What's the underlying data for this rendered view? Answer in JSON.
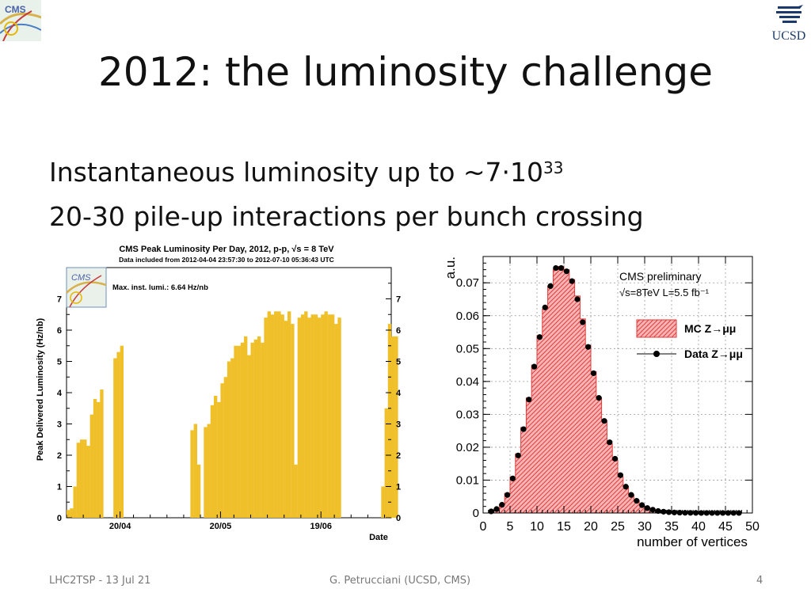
{
  "slide": {
    "title": "2012: the luminosity challenge",
    "bullet1_text": "Instantaneous luminosity up to ~7·10",
    "bullet1_exp": "33",
    "bullet2": "20-30 pile-up interactions per bunch crossing",
    "footer_left": "LHC2TSP - 13 Jul 21",
    "footer_center": "G. Petrucciani (UCSD, CMS)",
    "footer_right": "4",
    "logo_left_text": "CMS",
    "logo_right_text": "UCSD"
  },
  "chart_data": [
    {
      "type": "bar",
      "title": "CMS Peak Luminosity Per Day, 2012, p-p,  √s = 8 TeV",
      "subtitle": "Data included from 2012-04-04 23:57:30 to 2012-07-10 05:36:43 UTC",
      "annotation": "Max. inst. lumi.: 6.64 Hz/nb",
      "xlabel": "Date",
      "ylabel": "Peak Delivered Luminosity (Hz/nb)",
      "ylim": [
        0,
        8
      ],
      "yticks": [
        0,
        1,
        2,
        3,
        4,
        5,
        6,
        7
      ],
      "xtick_labels": [
        {
          "day": 16,
          "label": "20/04"
        },
        {
          "day": 46,
          "label": "20/05"
        },
        {
          "day": 76,
          "label": "19/06"
        }
      ],
      "ndays": 97,
      "color": "#f0c02a",
      "values": [
        0.25,
        0.3,
        1.0,
        2.4,
        2.5,
        2.5,
        2.3,
        3.3,
        3.8,
        3.7,
        4.1,
        0,
        0,
        0,
        5.1,
        5.3,
        5.5,
        0,
        0,
        0,
        0,
        0,
        0,
        0,
        0,
        0,
        0,
        0,
        0,
        0,
        0,
        0,
        0,
        0,
        0,
        0,
        0,
        2.8,
        3.0,
        1.7,
        0,
        2.9,
        3.0,
        3.6,
        3.9,
        3.7,
        4.3,
        4.5,
        5.0,
        5.1,
        5.5,
        5.5,
        5.6,
        5.8,
        5.2,
        5.6,
        5.7,
        5.8,
        5.6,
        6.4,
        6.6,
        6.5,
        6.6,
        6.6,
        6.5,
        6.3,
        6.6,
        6.2,
        1.7,
        6.4,
        6.5,
        6.6,
        6.4,
        6.5,
        6.5,
        6.4,
        6.5,
        6.6,
        6.5,
        6.5,
        6.2,
        6.4,
        0,
        0,
        0,
        0,
        0,
        0,
        0,
        0,
        0,
        0,
        0,
        0,
        1.0,
        3.5,
        6.2,
        5.8,
        5.8
      ]
    },
    {
      "type": "histogram",
      "title": "CMS preliminary",
      "subtitle": "√s=8TeV  L=5.5 fb⁻¹",
      "xlabel": "number of vertices",
      "ylabel": "a.u.",
      "xlim": [
        0,
        50
      ],
      "ylim": [
        0,
        0.078
      ],
      "xticks": [
        0,
        5,
        10,
        15,
        20,
        25,
        30,
        35,
        40,
        45,
        50
      ],
      "yticks": [
        0,
        0.01,
        0.02,
        0.03,
        0.04,
        0.05,
        0.06,
        0.07
      ],
      "ytick_labels": [
        "0",
        "0.01",
        "0.02",
        "0.03",
        "0.04",
        "0.05",
        "0.06",
        "0.07"
      ],
      "bin_width": 1,
      "mc": {
        "name": "MC Z→μμ",
        "color": "#e63b3b",
        "values": [
          0.0005,
          0.0012,
          0.0025,
          0.006,
          0.011,
          0.018,
          0.026,
          0.035,
          0.045,
          0.054,
          0.062,
          0.069,
          0.074,
          0.075,
          0.074,
          0.071,
          0.066,
          0.059,
          0.051,
          0.043,
          0.035,
          0.028,
          0.021,
          0.016,
          0.011,
          0.008,
          0.0055,
          0.0037,
          0.0024,
          0.0015,
          0.001,
          0.0006,
          0.0004,
          0.00025,
          0.00015,
          0.0001,
          6e-05,
          4e-05,
          3e-05,
          2e-05,
          1e-05,
          1e-05,
          1e-05,
          1e-05,
          1e-05,
          1e-05,
          1e-05
        ]
      },
      "data": {
        "name": "Data Z→μμ",
        "color": "#000000",
        "values": [
          0.0005,
          0.0012,
          0.0025,
          0.0055,
          0.0105,
          0.0175,
          0.0255,
          0.0345,
          0.0445,
          0.0535,
          0.0625,
          0.069,
          0.0745,
          0.0745,
          0.0735,
          0.0705,
          0.065,
          0.058,
          0.0505,
          0.0425,
          0.035,
          0.028,
          0.0215,
          0.0165,
          0.0115,
          0.008,
          0.0055,
          0.0037,
          0.0024,
          0.0015,
          0.001,
          0.0006,
          0.0004,
          0.00025,
          0.00015,
          0.0001,
          6e-05,
          4e-05,
          3e-05,
          2e-05,
          1e-05,
          1e-05,
          1e-05,
          1e-05,
          1e-05,
          1e-05,
          1e-05
        ]
      }
    }
  ]
}
